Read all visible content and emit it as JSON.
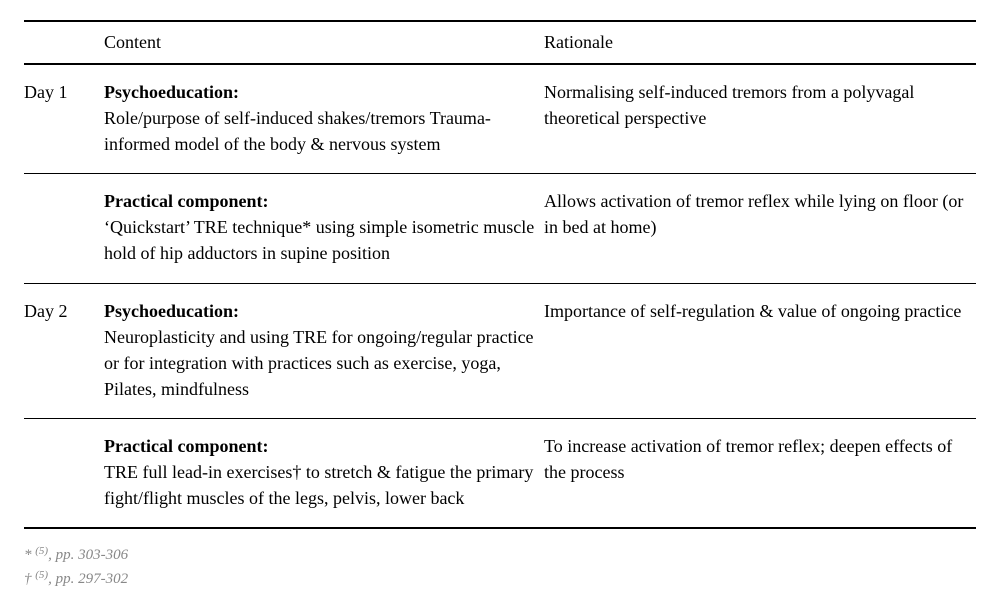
{
  "columns": {
    "day": "",
    "content": "Content",
    "rationale": "Rationale"
  },
  "rows": [
    {
      "day": "Day 1",
      "heading": "Psychoeducation:",
      "body": "Role/purpose of self-induced shakes/tremors Trauma-informed model of the body & nervous system",
      "rationale": "Normalising self-induced tremors from a polyvagal theoretical perspective"
    },
    {
      "day": "",
      "heading": "Practical component:",
      "body": "‘Quickstart’ TRE technique* using simple isometric muscle hold of hip adductors in supine position",
      "rationale": "Allows activation of tremor reflex while lying on floor (or in bed at home)"
    },
    {
      "day": "Day 2",
      "heading": "Psychoeducation:",
      "body": "Neuroplasticity and using TRE for ongoing/regular practice or for integration with practices such as exercise, yoga, Pilates, mindfulness",
      "rationale": "Importance of self-regulation & value of ongoing practice"
    },
    {
      "day": "",
      "heading": "Practical component:",
      "body": "TRE full lead-in exercises† to stretch & fatigue the primary fight/flight muscles of the legs, pelvis, lower back",
      "rationale": "To increase activation of tremor reflex; deepen effects of the process"
    }
  ],
  "footnotes": [
    {
      "symbol": "*",
      "ref": "(5)",
      "pages": ", pp. 303-306"
    },
    {
      "symbol": "†",
      "ref": "(5)",
      "pages": ", pp. 297-302"
    }
  ]
}
